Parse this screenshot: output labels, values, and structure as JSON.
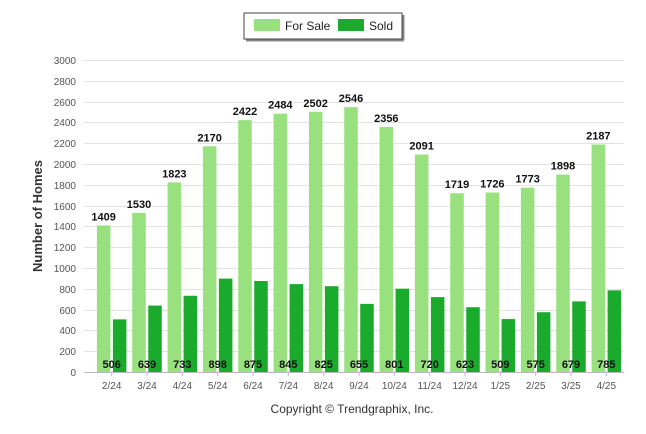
{
  "chart_data": {
    "type": "bar",
    "ylabel": "Number of Homes",
    "xlabel": "",
    "ylim": [
      0,
      3000
    ],
    "yticks": [
      "0",
      "200",
      "400",
      "600",
      "800",
      "1000",
      "1200",
      "1400",
      "1600",
      "1800",
      "2000",
      "2200",
      "2400",
      "2600",
      "2800",
      "3000"
    ],
    "grid": true,
    "legend_position": "top-center",
    "categories": [
      "2/24",
      "3/24",
      "4/24",
      "5/24",
      "6/24",
      "7/24",
      "8/24",
      "9/24",
      "10/24",
      "11/24",
      "12/24",
      "1/25",
      "2/25",
      "3/25",
      "4/25"
    ],
    "series": [
      {
        "name": "For Sale",
        "color": "#99e07f",
        "values": [
          1409,
          1530,
          1823,
          2170,
          2422,
          2484,
          2502,
          2546,
          2356,
          2091,
          1719,
          1726,
          1773,
          1898,
          2187
        ]
      },
      {
        "name": "Sold",
        "color": "#1aaa2c",
        "values": [
          506,
          639,
          733,
          898,
          875,
          845,
          825,
          655,
          801,
          720,
          623,
          509,
          575,
          679,
          785
        ]
      }
    ]
  },
  "footer": {
    "credit": "Copyright © Trendgraphix, Inc."
  }
}
